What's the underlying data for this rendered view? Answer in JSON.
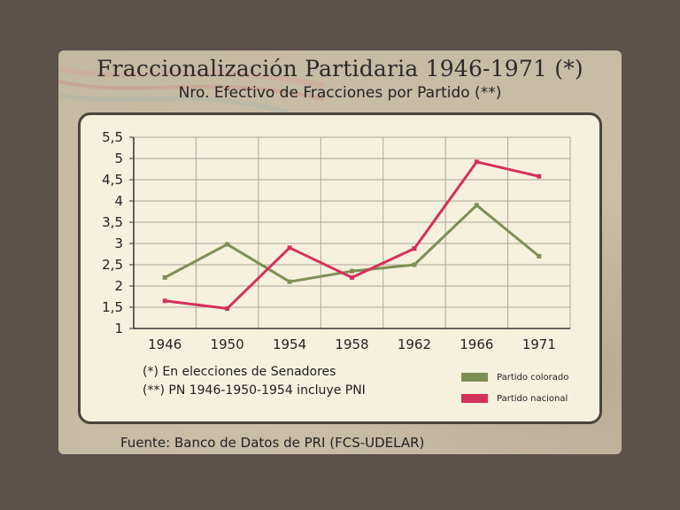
{
  "title": "Fraccionalización Partidaria 1946-1971 (*)",
  "subtitle": "Nro. Efectivo de Fracciones por Partido (**)",
  "notes": [
    "(*) En elecciones de Senadores",
    "(**) PN 1946-1950-1954 incluye PNI"
  ],
  "source": "Fuente: Banco de Datos de PRI (FCS-UDELAR)",
  "chart_data": {
    "type": "line",
    "categories": [
      "1946",
      "1950",
      "1954",
      "1958",
      "1962",
      "1966",
      "1971"
    ],
    "ylim": [
      1,
      5.5
    ],
    "yticks": [
      "1",
      "1,5",
      "2",
      "2,5",
      "3",
      "3,5",
      "4",
      "4,5",
      "5",
      "5,5"
    ],
    "grid": true,
    "legend_position": "bottom-right",
    "series": [
      {
        "name": "Partido colorado",
        "color": "#7d8f55",
        "values": [
          2.2,
          2.98,
          2.1,
          2.35,
          2.5,
          3.9,
          2.7
        ]
      },
      {
        "name": "Partido nacional",
        "color": "#d4305a",
        "values": [
          1.65,
          1.47,
          2.9,
          2.2,
          2.88,
          4.92,
          4.58
        ]
      }
    ]
  }
}
